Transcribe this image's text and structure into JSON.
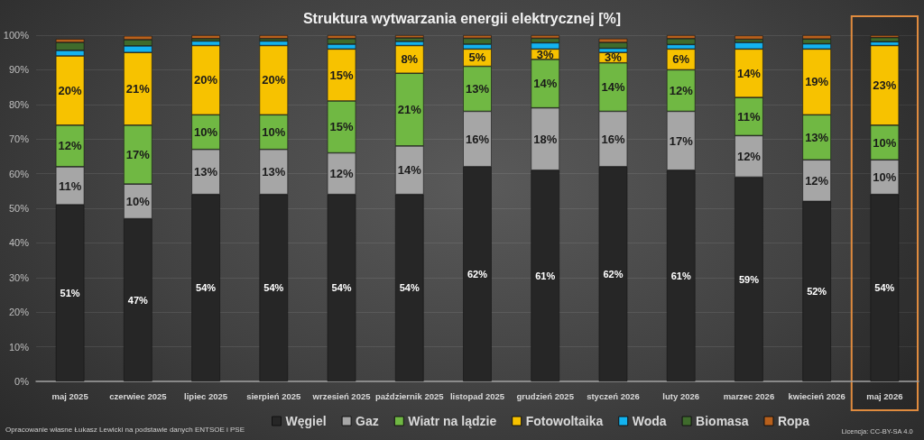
{
  "chart_data": {
    "type": "bar",
    "title": "Struktura wytwarzania energii elektrycznej [%]",
    "categories": [
      "maj 2025",
      "czerwiec 2025",
      "lipiec 2025",
      "sierpień 2025",
      "wrzesień 2025",
      "październik 2025",
      "listopad 2025",
      "grudzień 2025",
      "styczeń 2026",
      "luty 2026",
      "marzec 2026",
      "kwiecień 2026",
      "maj 2026"
    ],
    "series": [
      {
        "name": "Węgiel",
        "color": "#262626",
        "values": [
          51,
          47,
          54,
          54,
          54,
          54,
          62,
          61,
          62,
          61,
          59,
          52,
          54
        ],
        "value_labels": [
          "51%",
          "47%",
          "54%",
          "54%",
          "54%",
          "54%",
          "62%",
          "61%",
          "62%",
          "61%",
          "59%",
          "52%",
          "54%"
        ]
      },
      {
        "name": "Gaz",
        "color": "#a6a6a6",
        "values": [
          11,
          10,
          13,
          13,
          12,
          14,
          16,
          18,
          16,
          17,
          12,
          12,
          10
        ],
        "value_labels": [
          "11%",
          "10%",
          "13%",
          "13%",
          "12%",
          "14%",
          "16%",
          "18%",
          "16%",
          "17%",
          "12%",
          "12%",
          "10%"
        ]
      },
      {
        "name": "Wiatr na lądzie",
        "color": "#70b843",
        "values": [
          12,
          17,
          10,
          10,
          15,
          21,
          13,
          14,
          14,
          12,
          11,
          13,
          10
        ],
        "value_labels": [
          "12%",
          "17%",
          "10%",
          "10%",
          "15%",
          "21%",
          "13%",
          "14%",
          "14%",
          "12%",
          "11%",
          "13%",
          "10%"
        ]
      },
      {
        "name": "Fotowoltaika",
        "color": "#f7c200",
        "values": [
          20,
          21,
          20,
          20,
          15,
          8,
          5,
          3,
          3,
          6,
          14,
          19,
          23
        ],
        "value_labels": [
          "20%",
          "21%",
          "20%",
          "20%",
          "15%",
          "8%",
          "5%",
          "3%",
          "3%",
          "6%",
          "14%",
          "19%",
          "23%"
        ]
      },
      {
        "name": "Woda",
        "color": "#13b3ef",
        "values": [
          1.6,
          1.9,
          1.3,
          1.3,
          1.4,
          1.2,
          1.4,
          1.8,
          1.2,
          1.3,
          1.9,
          1.5,
          1.1
        ]
      },
      {
        "name": "Biomasa",
        "color": "#3f6b2c",
        "values": [
          2.3,
          1.8,
          0.7,
          0.7,
          1.6,
          1.0,
          1.7,
          1.3,
          1.7,
          1.7,
          0.9,
          1.4,
          1.2
        ]
      },
      {
        "name": "Ropa",
        "color": "#b8601c",
        "values": [
          1.0,
          1.1,
          1.0,
          1.0,
          1.0,
          0.8,
          0.9,
          0.9,
          1.1,
          1.0,
          1.1,
          1.1,
          0.7
        ]
      }
    ],
    "stacked": true,
    "ylim": [
      0,
      100
    ],
    "yticks": [
      {
        "value": 0,
        "label": "0%"
      },
      {
        "value": 10,
        "label": "10%"
      },
      {
        "value": 20,
        "label": "20%"
      },
      {
        "value": 30,
        "label": "30%"
      },
      {
        "value": 40,
        "label": "40%"
      },
      {
        "value": 50,
        "label": "50%"
      },
      {
        "value": 60,
        "label": "60%"
      },
      {
        "value": 70,
        "label": "70%"
      },
      {
        "value": 80,
        "label": "80%"
      },
      {
        "value": 90,
        "label": "90%"
      },
      {
        "value": 100,
        "label": "100%"
      }
    ],
    "grid": "y",
    "legend": "bottom",
    "bands": [
      {
        "axis": "x",
        "from": "maj 2026",
        "to": "maj 2026",
        "color": "#e08b3e"
      }
    ],
    "annotations": [
      "Opracowanie własne Łukasz Lewicki na podstawie danych ENTSOE i PSE",
      "Licencja: CC-BY-SA 4.0"
    ]
  }
}
